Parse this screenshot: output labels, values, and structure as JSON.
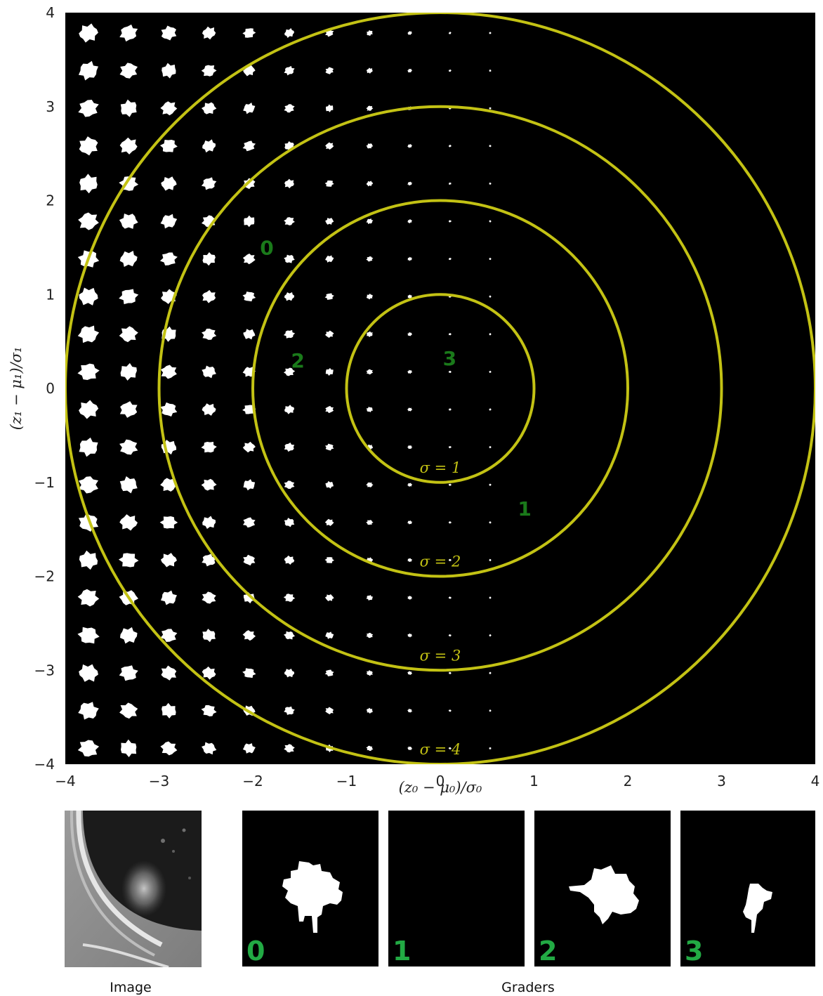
{
  "colors": {
    "background": "#000000",
    "ring": "#c3c214",
    "grader_label": "#1a7a1a",
    "panel_label": "#22aa44",
    "mask": "#ffffff"
  },
  "chart_data": {
    "type": "scatter",
    "xlabel": "(z₀ − μ₀)/σ₀",
    "ylabel": "(z₁ − μ₁)/σ₁",
    "xlim": [
      -4,
      4
    ],
    "ylim": [
      -4,
      4
    ],
    "x_ticks": [
      "−4",
      "−3",
      "−2",
      "−1",
      "0",
      "1",
      "2",
      "3",
      "4"
    ],
    "y_ticks": [
      "4",
      "3",
      "2",
      "1",
      "0",
      "−1",
      "−2",
      "−3",
      "−4"
    ],
    "grid": "off",
    "mask_grid_columns": 11,
    "mask_grid_rows": 20,
    "rings": [
      {
        "sigma": 1,
        "label": "σ = 1"
      },
      {
        "sigma": 2,
        "label": "σ = 2"
      },
      {
        "sigma": 3,
        "label": "σ = 3"
      },
      {
        "sigma": 4,
        "label": "σ = 4"
      }
    ],
    "grader_points": [
      {
        "label": "0",
        "x": -1.85,
        "y": 1.5
      },
      {
        "label": "2",
        "x": -1.52,
        "y": 0.3
      },
      {
        "label": "3",
        "x": 0.1,
        "y": 0.32
      },
      {
        "label": "1",
        "x": 0.9,
        "y": -1.28
      }
    ]
  },
  "bottom": {
    "image_caption": "Image",
    "graders_caption": "Graders",
    "panels": [
      {
        "label": "0",
        "shape": "spiky-mask"
      },
      {
        "label": "1",
        "shape": "empty"
      },
      {
        "label": "2",
        "shape": "star-mask"
      },
      {
        "label": "3",
        "shape": "small-mask"
      }
    ]
  }
}
